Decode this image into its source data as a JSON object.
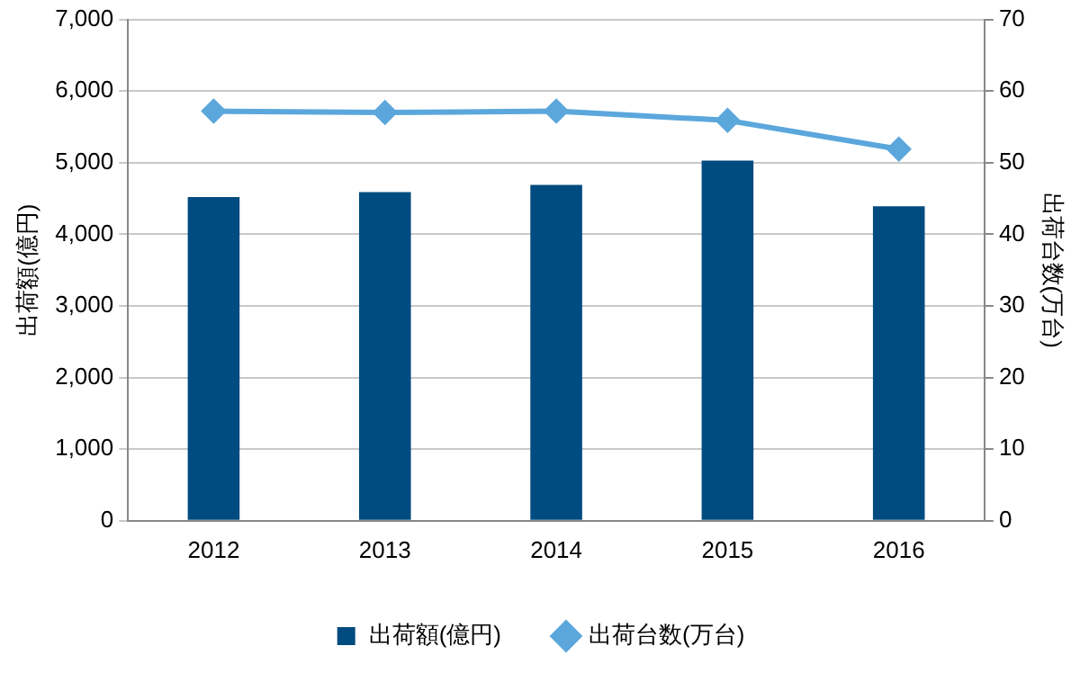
{
  "chart_data": {
    "type": "bar",
    "categories": [
      "2012",
      "2013",
      "2014",
      "2015",
      "2016"
    ],
    "series": [
      {
        "name": "出荷額(億円)",
        "color": "#004b80",
        "values": [
          4520,
          4590,
          4690,
          5030,
          4390
        ]
      },
      {
        "name": "出荷台数(万台)",
        "type": "line",
        "axis": "y2",
        "color": "#5ba7dc",
        "values": [
          57.2,
          57.0,
          57.2,
          55.9,
          51.9
        ]
      }
    ],
    "ylabel": "出荷額(億円)",
    "y2label": "出荷台数(万台)",
    "ylim": [
      0,
      7000
    ],
    "yticks": [
      {
        "value": 0,
        "label": "0"
      },
      {
        "value": 1000,
        "label": "1,000"
      },
      {
        "value": 2000,
        "label": "2,000"
      },
      {
        "value": 3000,
        "label": "3,000"
      },
      {
        "value": 4000,
        "label": "4,000"
      },
      {
        "value": 5000,
        "label": "5,000"
      },
      {
        "value": 6000,
        "label": "6,000"
      },
      {
        "value": 7000,
        "label": "7,000"
      }
    ],
    "y2lim": [
      0,
      70
    ],
    "y2ticks": [
      0,
      10,
      20,
      30,
      40,
      50,
      60,
      70
    ],
    "grid": "y",
    "legend": "bottom",
    "marker": "diamond",
    "line_style": "solid"
  }
}
